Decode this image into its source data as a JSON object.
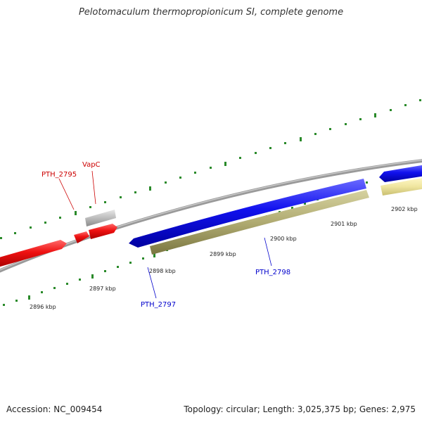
{
  "header": {
    "title": "Pelotomaculum thermopropionicum SI, complete genome"
  },
  "footer": {
    "accession": "Accession: NC_009454",
    "topology": "Topology: circular; Length: 3,025,375 bp; Genes: 2,975"
  },
  "scale": {
    "ticks": [
      "2896 kbp",
      "2897 kbp",
      "2898 kbp",
      "2899 kbp",
      "2900 kbp",
      "2901 kbp",
      "2902 kbp"
    ]
  },
  "genes": [
    {
      "label": "PTH_2795",
      "color": "#cc0000",
      "strand": "forward"
    },
    {
      "label": "VapC",
      "color": "#cc0000",
      "strand": "forward"
    },
    {
      "label": "PTH_2797",
      "color": "#0000cc",
      "strand": "forward"
    },
    {
      "label": "PTH_2798",
      "color": "#0000cc",
      "strand": "forward"
    }
  ],
  "colors": {
    "cds_forward": "#ee1111",
    "cds_blue": "#1111ee",
    "rna_gray": "#bbbbbb",
    "feature_olive": "#b8b480",
    "feature_yellow": "#f0e8a0",
    "backbone": "#888888",
    "tick_green": "#2a8a2a"
  }
}
